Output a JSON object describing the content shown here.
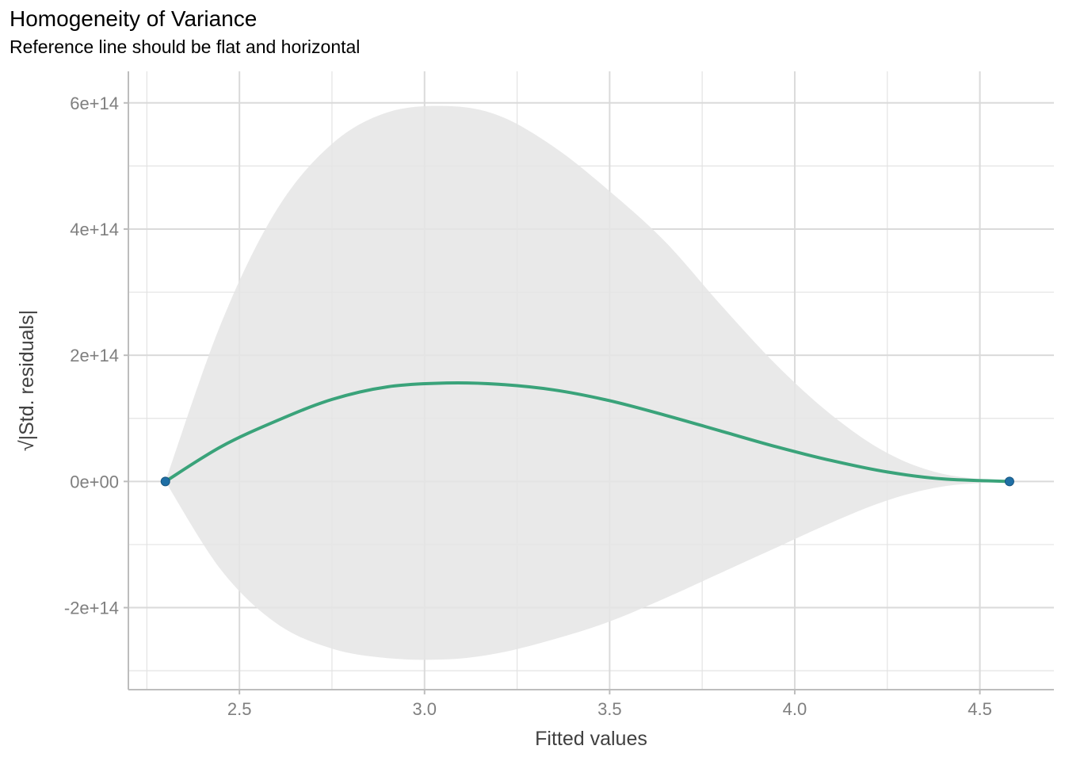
{
  "chart_data": {
    "type": "line",
    "title": "Homogeneity of Variance",
    "subtitle": "Reference line should be flat and horizontal",
    "xlabel": "Fitted values",
    "ylabel": "√|Std. residuals|",
    "xlim": [
      2.2,
      4.7
    ],
    "ylim": [
      -330000000000000.0,
      650000000000000.0
    ],
    "x_ticks": [
      2.5,
      3.0,
      3.5,
      4.0,
      4.5
    ],
    "x_tick_labels": [
      "2.5",
      "3.0",
      "3.5",
      "4.0",
      "4.5"
    ],
    "y_ticks": [
      -200000000000000.0,
      0,
      200000000000000.0,
      400000000000000.0,
      600000000000000.0
    ],
    "y_tick_labels": [
      "-2e+14",
      "0e+00",
      "2e+14",
      "4e+14",
      "6e+14"
    ],
    "grid": true,
    "points": [
      {
        "x": 2.3,
        "y": 0
      },
      {
        "x": 4.58,
        "y": 0
      }
    ],
    "smooth": {
      "x": [
        2.3,
        2.45,
        2.6,
        2.75,
        2.9,
        3.06,
        3.2,
        3.35,
        3.5,
        3.65,
        3.8,
        3.95,
        4.1,
        4.25,
        4.4,
        4.58
      ],
      "y": [
        0,
        55000000000000.0,
        96000000000000.0,
        130000000000000.0,
        150000000000000.0,
        156000000000000.0,
        154000000000000.0,
        145000000000000.0,
        128000000000000.0,
        105000000000000.0,
        80000000000000.0,
        55000000000000.0,
        33000000000000.0,
        15000000000000.0,
        4000000000000.0,
        0
      ],
      "upper": [
        0,
        250000000000000.0,
        430000000000000.0,
        535000000000000.0,
        585000000000000.0,
        595000000000000.0,
        580000000000000.0,
        530000000000000.0,
        460000000000000.0,
        380000000000000.0,
        280000000000000.0,
        185000000000000.0,
        105000000000000.0,
        45000000000000.0,
        12000000000000.0,
        0
      ],
      "lower": [
        0,
        -140000000000000.0,
        -225000000000000.0,
        -265000000000000.0,
        -280000000000000.0,
        -282000000000000.0,
        -272000000000000.0,
        -250000000000000.0,
        -222000000000000.0,
        -185000000000000.0,
        -145000000000000.0,
        -105000000000000.0,
        -65000000000000.0,
        -30000000000000.0,
        -8000000000000.0,
        0
      ]
    },
    "colors": {
      "line": "#3aa37a",
      "points": "#1f6fa5",
      "band": "#e5e5e5",
      "grid": "#e3e3e3",
      "axis": "#bdbdbd"
    }
  }
}
